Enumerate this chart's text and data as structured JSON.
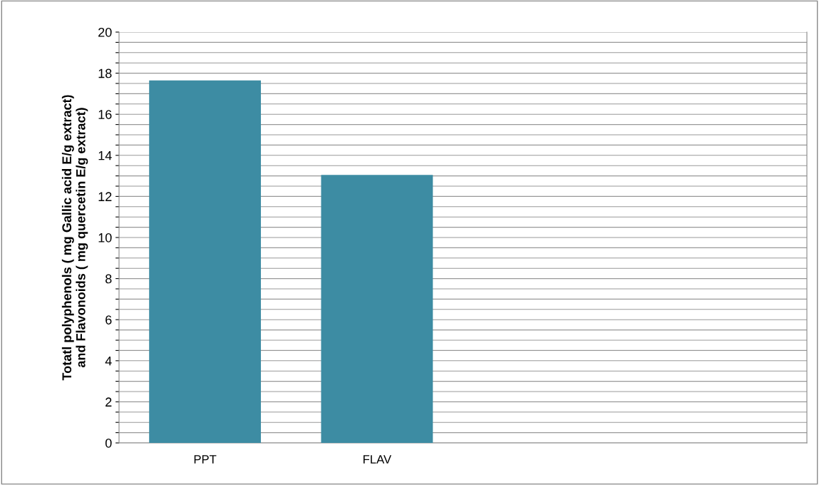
{
  "chart_data": {
    "type": "bar",
    "ylabel": "Totatl polyphenols ( mg Gallic acid E/g extract)\nand Flavonoids ( mg quercetin E/g extract)",
    "categories": [
      "PPT",
      "FLAV",
      null,
      null
    ],
    "values": [
      17.65,
      13.05,
      null,
      null
    ],
    "color": "#3d8ca3",
    "ylim": [
      0,
      20
    ],
    "yticks": [
      0,
      {
        "value": 0.5,
        "label": null
      },
      {
        "value": 1,
        "label": null
      },
      {
        "value": 1.5,
        "label": null
      },
      2,
      {
        "value": 2.5,
        "label": null
      },
      {
        "value": 3,
        "label": null
      },
      {
        "value": 3.5,
        "label": null
      },
      4,
      {
        "value": 4.5,
        "label": null
      },
      {
        "value": 5,
        "label": null
      },
      {
        "value": 5.5,
        "label": null
      },
      6,
      {
        "value": 6.5,
        "label": null
      },
      {
        "value": 7,
        "label": null
      },
      {
        "value": 7.5,
        "label": null
      },
      8,
      {
        "value": 8.5,
        "label": null
      },
      {
        "value": 9,
        "label": null
      },
      {
        "value": 9.5,
        "label": null
      },
      10,
      {
        "value": 10.5,
        "label": null
      },
      {
        "value": 11,
        "label": null
      },
      {
        "value": 11.5,
        "label": null
      },
      12,
      {
        "value": 12.5,
        "label": null
      },
      {
        "value": 13,
        "label": null
      },
      {
        "value": 13.5,
        "label": null
      },
      14,
      {
        "value": 14.5,
        "label": null
      },
      {
        "value": 15,
        "label": null
      },
      {
        "value": 15.5,
        "label": null
      },
      16,
      {
        "value": 16.5,
        "label": null
      },
      {
        "value": 17,
        "label": null
      },
      {
        "value": 17.5,
        "label": null
      },
      18,
      {
        "value": 18.5,
        "label": null
      },
      {
        "value": 19,
        "label": null
      },
      {
        "value": 19.5,
        "label": null
      },
      20
    ],
    "grid": "y"
  }
}
